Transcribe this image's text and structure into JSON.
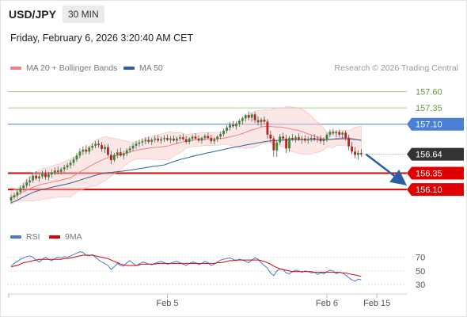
{
  "header": {
    "symbol": "USD/JPY",
    "timeframe": "30 MIN",
    "datetime": "Friday, February 6, 2026 3:20:40 AM CET"
  },
  "legend": {
    "ma20_label": "MA 20 + Bollinger Bands",
    "ma20_color": "#f08080",
    "ma50_label": "MA 50",
    "ma50_color": "#2f5f9e",
    "copyright": "Research © 2026 Trading Central"
  },
  "rsi_legend": {
    "rsi_label": "RSI",
    "rsi_color": "#4a78d6",
    "ma9_label": "9MA",
    "ma9_color": "#e00000"
  },
  "chart_data": [
    {
      "type": "candlestick",
      "ylim": [
        155.7,
        157.85
      ],
      "grid": false,
      "current_price": 156.64,
      "levels": [
        {
          "label": "157.60",
          "value": 157.6,
          "color": "#a8cf8f",
          "kind": "resistance"
        },
        {
          "label": "157.35",
          "value": 157.35,
          "color": "#a8cf8f",
          "kind": "resistance"
        },
        {
          "label": "157.10",
          "value": 157.1,
          "color": "#4a7fd6",
          "kind": "pivot"
        },
        {
          "label": "156.64",
          "value": 156.64,
          "color": "#333333",
          "kind": "last"
        },
        {
          "label": "156.35",
          "value": 156.35,
          "color": "#e00000",
          "kind": "support"
        },
        {
          "label": "156.10",
          "value": 156.1,
          "color": "#e00000",
          "kind": "support"
        }
      ],
      "xaxis_ticks": [
        {
          "label": "Feb 5",
          "index": 50
        },
        {
          "label": "Feb 6",
          "index": 101
        },
        {
          "label": "Feb 15",
          "index": 117
        }
      ],
      "x_count": 120,
      "projection": {
        "from_value": 156.64,
        "to_value": 156.12,
        "color": "#2b5ea7"
      },
      "ohlc": [
        [
          155.93,
          156.02,
          155.88,
          155.98
        ],
        [
          155.98,
          156.05,
          155.95,
          156.01
        ],
        [
          156.01,
          156.1,
          155.97,
          156.06
        ],
        [
          156.06,
          156.16,
          156.02,
          156.12
        ],
        [
          156.12,
          156.2,
          156.08,
          156.16
        ],
        [
          156.16,
          156.26,
          156.12,
          156.21
        ],
        [
          156.21,
          156.3,
          156.15,
          156.24
        ],
        [
          156.24,
          156.36,
          156.2,
          156.31
        ],
        [
          156.31,
          156.38,
          156.24,
          156.27
        ],
        [
          156.27,
          156.34,
          156.22,
          156.3
        ],
        [
          156.3,
          156.39,
          156.26,
          156.34
        ],
        [
          156.34,
          156.4,
          156.25,
          156.29
        ],
        [
          156.29,
          156.37,
          156.24,
          156.33
        ],
        [
          156.33,
          156.41,
          156.28,
          156.36
        ],
        [
          156.36,
          156.44,
          156.32,
          156.39
        ],
        [
          156.39,
          156.45,
          156.33,
          156.37
        ],
        [
          156.37,
          156.44,
          156.33,
          156.41
        ],
        [
          156.41,
          156.48,
          156.36,
          156.44
        ],
        [
          156.44,
          156.51,
          156.4,
          156.47
        ],
        [
          156.47,
          156.55,
          156.42,
          156.51
        ],
        [
          156.51,
          156.6,
          156.46,
          156.56
        ],
        [
          156.56,
          156.66,
          156.52,
          156.62
        ],
        [
          156.62,
          156.73,
          156.58,
          156.68
        ],
        [
          156.68,
          156.76,
          156.63,
          156.71
        ],
        [
          156.71,
          156.78,
          156.64,
          156.68
        ],
        [
          156.68,
          156.77,
          156.64,
          156.74
        ],
        [
          156.74,
          156.81,
          156.7,
          156.77
        ],
        [
          156.77,
          156.84,
          156.73,
          156.8
        ],
        [
          156.8,
          156.86,
          156.74,
          156.78
        ],
        [
          156.78,
          156.83,
          156.68,
          156.72
        ],
        [
          156.72,
          156.79,
          156.66,
          156.75
        ],
        [
          156.75,
          156.8,
          156.6,
          156.63
        ],
        [
          156.63,
          156.69,
          156.49,
          156.55
        ],
        [
          156.55,
          156.66,
          156.52,
          156.63
        ],
        [
          156.63,
          156.72,
          156.58,
          156.67
        ],
        [
          156.67,
          156.74,
          156.6,
          156.62
        ],
        [
          156.62,
          156.69,
          156.56,
          156.65
        ],
        [
          156.65,
          156.73,
          156.61,
          156.7
        ],
        [
          156.7,
          156.77,
          156.66,
          156.73
        ],
        [
          156.73,
          156.81,
          156.69,
          156.77
        ],
        [
          156.77,
          156.84,
          156.72,
          156.8
        ],
        [
          156.8,
          156.86,
          156.75,
          156.82
        ],
        [
          156.82,
          156.88,
          156.77,
          156.84
        ],
        [
          156.84,
          156.9,
          156.79,
          156.86
        ],
        [
          156.86,
          156.91,
          156.8,
          156.83
        ],
        [
          156.83,
          156.89,
          156.78,
          156.86
        ],
        [
          156.86,
          156.92,
          156.82,
          156.88
        ],
        [
          156.88,
          156.93,
          156.82,
          156.85
        ],
        [
          156.85,
          156.91,
          156.8,
          156.87
        ],
        [
          156.87,
          156.93,
          156.83,
          156.89
        ],
        [
          156.89,
          156.94,
          156.84,
          156.86
        ],
        [
          156.86,
          156.92,
          156.81,
          156.88
        ],
        [
          156.88,
          156.93,
          156.83,
          156.85
        ],
        [
          156.85,
          156.91,
          156.8,
          156.88
        ],
        [
          156.88,
          156.94,
          156.84,
          156.9
        ],
        [
          156.9,
          156.95,
          156.85,
          156.87
        ],
        [
          156.87,
          156.92,
          156.8,
          156.83
        ],
        [
          156.83,
          156.9,
          156.79,
          156.88
        ],
        [
          156.88,
          156.94,
          156.84,
          156.91
        ],
        [
          156.91,
          156.96,
          156.86,
          156.88
        ],
        [
          156.88,
          156.93,
          156.82,
          156.85
        ],
        [
          156.85,
          156.91,
          156.8,
          156.89
        ],
        [
          156.89,
          156.95,
          156.85,
          156.92
        ],
        [
          156.92,
          156.97,
          156.87,
          156.89
        ],
        [
          156.89,
          156.94,
          156.8,
          156.84
        ],
        [
          156.84,
          156.9,
          156.79,
          156.87
        ],
        [
          156.87,
          156.93,
          156.83,
          156.91
        ],
        [
          156.91,
          156.98,
          156.87,
          156.95
        ],
        [
          156.95,
          157.03,
          156.91,
          157.0
        ],
        [
          157.0,
          157.08,
          156.96,
          157.05
        ],
        [
          157.05,
          157.13,
          157.0,
          157.09
        ],
        [
          157.09,
          157.15,
          157.04,
          157.07
        ],
        [
          157.07,
          157.14,
          157.02,
          157.11
        ],
        [
          157.11,
          157.18,
          157.06,
          157.15
        ],
        [
          157.15,
          157.22,
          157.1,
          157.19
        ],
        [
          157.19,
          157.26,
          157.14,
          157.24
        ],
        [
          157.24,
          157.3,
          157.16,
          157.2
        ],
        [
          157.2,
          157.27,
          157.14,
          157.25
        ],
        [
          157.25,
          157.29,
          157.12,
          157.16
        ],
        [
          157.16,
          157.22,
          157.08,
          157.13
        ],
        [
          157.13,
          157.2,
          157.06,
          157.17
        ],
        [
          157.17,
          157.22,
          157.1,
          157.14
        ],
        [
          157.14,
          157.18,
          156.88,
          156.94
        ],
        [
          156.94,
          157.0,
          156.82,
          156.88
        ],
        [
          156.88,
          156.92,
          156.6,
          156.7
        ],
        [
          156.7,
          156.86,
          156.6,
          156.82
        ],
        [
          156.82,
          156.95,
          156.78,
          156.91
        ],
        [
          156.91,
          156.97,
          156.84,
          156.88
        ],
        [
          156.88,
          156.94,
          156.66,
          156.73
        ],
        [
          156.73,
          156.92,
          156.68,
          156.89
        ],
        [
          156.89,
          156.95,
          156.84,
          156.87
        ],
        [
          156.87,
          156.93,
          156.82,
          156.9
        ],
        [
          156.9,
          156.96,
          156.84,
          156.86
        ],
        [
          156.86,
          156.92,
          156.8,
          156.88
        ],
        [
          156.88,
          156.93,
          156.82,
          156.85
        ],
        [
          156.85,
          156.91,
          156.8,
          156.87
        ],
        [
          156.87,
          156.93,
          156.83,
          156.89
        ],
        [
          156.89,
          156.95,
          156.84,
          156.87
        ],
        [
          156.87,
          156.92,
          156.82,
          156.88
        ],
        [
          156.88,
          156.93,
          156.8,
          156.84
        ],
        [
          156.84,
          156.9,
          156.78,
          156.86
        ],
        [
          156.86,
          156.97,
          156.83,
          156.94
        ],
        [
          156.94,
          157.02,
          156.9,
          156.98
        ],
        [
          156.98,
          157.03,
          156.93,
          156.96
        ],
        [
          156.96,
          157.01,
          156.9,
          156.98
        ],
        [
          156.98,
          157.02,
          156.9,
          156.94
        ],
        [
          156.94,
          156.99,
          156.88,
          156.97
        ],
        [
          156.97,
          157.0,
          156.85,
          156.89
        ],
        [
          156.89,
          156.94,
          156.7,
          156.76
        ],
        [
          156.76,
          156.83,
          156.64,
          156.68
        ],
        [
          156.68,
          156.75,
          156.58,
          156.63
        ],
        [
          156.63,
          156.7,
          156.56,
          156.66
        ],
        [
          156.66,
          156.72,
          156.6,
          156.64
        ]
      ]
    },
    {
      "type": "line",
      "title": "RSI",
      "ylim": [
        22,
        80
      ],
      "ticks": [
        {
          "label": "70",
          "value": 70
        },
        {
          "label": "50",
          "value": 50
        },
        {
          "label": "30",
          "value": 30
        }
      ],
      "series": [
        {
          "name": "RSI",
          "color": "#4a78d6",
          "values": [
            57,
            61,
            64,
            67,
            69,
            71,
            72,
            70,
            66,
            63,
            67,
            70,
            67,
            65,
            68,
            70,
            69,
            71,
            70,
            72,
            74,
            76,
            78,
            77,
            73,
            72,
            74,
            70,
            66,
            63,
            61,
            58,
            52,
            56,
            61,
            58,
            57,
            62,
            65,
            61,
            58,
            60,
            63,
            62,
            60,
            59,
            61,
            63,
            64,
            62,
            60,
            61,
            63,
            64,
            62,
            60,
            58,
            61,
            63,
            62,
            59,
            61,
            64,
            62,
            58,
            60,
            63,
            66,
            67,
            68,
            69,
            67,
            65,
            67,
            66,
            64,
            62,
            66,
            69,
            67,
            62,
            58,
            54,
            47,
            43,
            50,
            53,
            52,
            47,
            46,
            49,
            51,
            50,
            48,
            50,
            49,
            47,
            48,
            45,
            47,
            46,
            49,
            51,
            50,
            46,
            48,
            47,
            44,
            40,
            37,
            35,
            38,
            37
          ]
        },
        {
          "name": "9MA",
          "color": "#e00000",
          "values": [
            56,
            57,
            58,
            60,
            62,
            63,
            64,
            65,
            66,
            67,
            67,
            67,
            67,
            67,
            67,
            67,
            67,
            68,
            68,
            69,
            70,
            71,
            72,
            73,
            73,
            73,
            73,
            72,
            71,
            70,
            69,
            68,
            66,
            64,
            62,
            60,
            59,
            58,
            58,
            58,
            58,
            59,
            60,
            60,
            60,
            60,
            60,
            61,
            61,
            61,
            61,
            61,
            61,
            61,
            61,
            61,
            61,
            61,
            61,
            61,
            61,
            61,
            61,
            61,
            61,
            61,
            62,
            62,
            63,
            64,
            65,
            65,
            66,
            66,
            66,
            66,
            66,
            66,
            66,
            66,
            65,
            64,
            62,
            60,
            57,
            55,
            53,
            52,
            51,
            50,
            49,
            49,
            49,
            49,
            49,
            49,
            49,
            48,
            48,
            48,
            48,
            48,
            48,
            48,
            48,
            48,
            47,
            47,
            46,
            45,
            44,
            43,
            42
          ]
        }
      ]
    }
  ]
}
